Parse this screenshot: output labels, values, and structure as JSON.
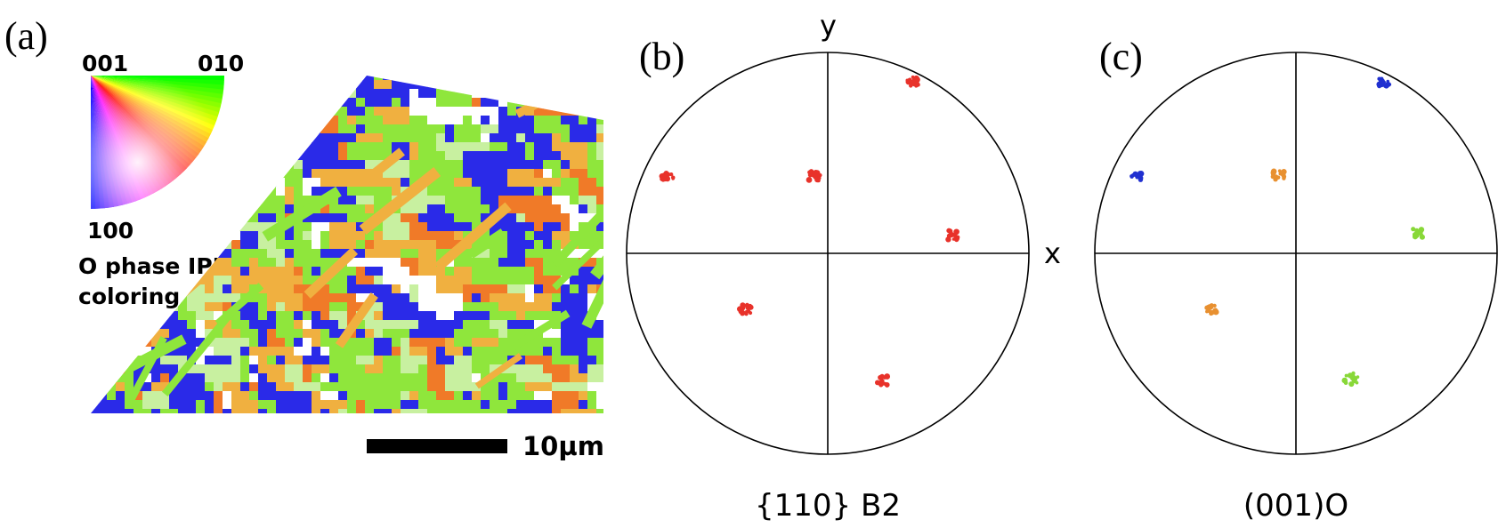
{
  "panels": {
    "a": {
      "label": "(a)",
      "ipf_key": {
        "corner_top_left": "001",
        "corner_top_right": "010",
        "corner_bottom": "100",
        "caption_line1": "O phase IPF",
        "caption_line2": "coloring"
      },
      "map_colors": [
        "#2a2ae8",
        "#8fe63c",
        "#f0b040",
        "#f07a28",
        "#c8f0a0",
        "#ffffff"
      ],
      "scale_bar_label": "10µm"
    },
    "b": {
      "label": "(b)",
      "axis_y": "y",
      "axis_x": "x",
      "caption": "{110} B2",
      "spot_color": "#e8322a"
    },
    "c": {
      "label": "(c)",
      "caption": "(001)O",
      "spot_colors": {
        "blue": "#2030d0",
        "orange": "#e89030",
        "green": "#88d838"
      }
    }
  }
}
